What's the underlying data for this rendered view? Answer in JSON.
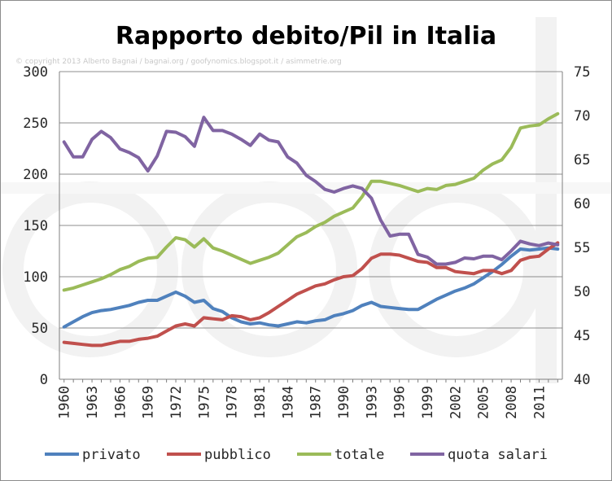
{
  "chart_data": {
    "type": "line",
    "title": "Rapporto debito/Pil in Italia",
    "subtitle": "© copyright 2013 Alberto Bagnai / bagnai.org / goofynomics.blogspot.it / asimmetrie.org",
    "watermark": "a/simmetrie",
    "x": [
      1960,
      1961,
      1962,
      1963,
      1964,
      1965,
      1966,
      1967,
      1968,
      1969,
      1970,
      1971,
      1972,
      1973,
      1974,
      1975,
      1976,
      1977,
      1978,
      1979,
      1980,
      1981,
      1982,
      1983,
      1984,
      1985,
      1986,
      1987,
      1988,
      1989,
      1990,
      1991,
      1992,
      1993,
      1994,
      1995,
      1996,
      1997,
      1998,
      1999,
      2000,
      2001,
      2002,
      2003,
      2004,
      2005,
      2006,
      2007,
      2008,
      2009,
      2010,
      2011,
      2012,
      2013
    ],
    "x_tick_labels": [
      "1960",
      "1963",
      "1966",
      "1969",
      "1972",
      "1975",
      "1978",
      "1981",
      "1984",
      "1987",
      "1990",
      "1993",
      "1996",
      "1999",
      "2002",
      "2005",
      "2008",
      "2011"
    ],
    "y_left": {
      "ylim": [
        0,
        300
      ],
      "ticks": [
        0,
        50,
        100,
        150,
        200,
        250,
        300
      ]
    },
    "y_right": {
      "ylim": [
        40,
        75
      ],
      "ticks": [
        40,
        45,
        50,
        55,
        60,
        65,
        70,
        75
      ]
    },
    "grid": true,
    "legend_position": "bottom",
    "series": [
      {
        "name": "privato",
        "axis": "left",
        "color": "#4f81bd",
        "values": [
          51,
          56,
          61,
          65,
          67,
          68,
          70,
          72,
          75,
          77,
          77,
          81,
          85,
          81,
          75,
          77,
          69,
          66,
          60,
          56,
          54,
          55,
          53,
          52,
          54,
          56,
          55,
          57,
          58,
          62,
          64,
          67,
          72,
          75,
          71,
          70,
          69,
          68,
          68,
          73,
          78,
          82,
          86,
          89,
          93,
          99,
          105,
          112,
          120,
          127,
          126,
          127,
          128,
          127
        ]
      },
      {
        "name": "pubblico",
        "axis": "left",
        "color": "#c0504d",
        "values": [
          36,
          35,
          34,
          33,
          33,
          35,
          37,
          37,
          39,
          40,
          42,
          47,
          52,
          54,
          52,
          60,
          59,
          58,
          62,
          61,
          58,
          60,
          65,
          71,
          77,
          83,
          87,
          91,
          93,
          97,
          100,
          101,
          108,
          118,
          122,
          122,
          121,
          118,
          115,
          114,
          109,
          109,
          105,
          104,
          103,
          106,
          106,
          103,
          106,
          116,
          119,
          120,
          127,
          133
        ]
      },
      {
        "name": "totale",
        "axis": "left",
        "color": "#9bbb59",
        "values": [
          87,
          89,
          92,
          95,
          98,
          102,
          107,
          110,
          115,
          118,
          119,
          129,
          138,
          136,
          129,
          137,
          128,
          125,
          121,
          117,
          113,
          116,
          119,
          123,
          131,
          139,
          143,
          149,
          153,
          159,
          163,
          167,
          178,
          193,
          193,
          191,
          189,
          186,
          183,
          186,
          185,
          189,
          190,
          193,
          196,
          204,
          210,
          214,
          226,
          245,
          247,
          248,
          254,
          259
        ]
      },
      {
        "name": "quota salari",
        "axis": "right",
        "color": "#8064a2",
        "values": [
          67,
          65.3,
          65.3,
          67.3,
          68.2,
          67.5,
          66.2,
          65.8,
          65.2,
          63.7,
          65.4,
          68.2,
          68.1,
          67.6,
          66.5,
          69.8,
          68.3,
          68.3,
          67.9,
          67.3,
          66.6,
          67.9,
          67.2,
          67,
          65.3,
          64.6,
          63.2,
          62.5,
          61.6,
          61.3,
          61.7,
          62,
          61.7,
          60.6,
          58.1,
          56.3,
          56.5,
          56.5,
          54.2,
          53.9,
          53.1,
          53.1,
          53.3,
          53.8,
          53.7,
          54,
          54,
          53.6,
          54.6,
          55.7,
          55.4,
          55.2,
          55.5,
          55.3
        ]
      }
    ]
  }
}
